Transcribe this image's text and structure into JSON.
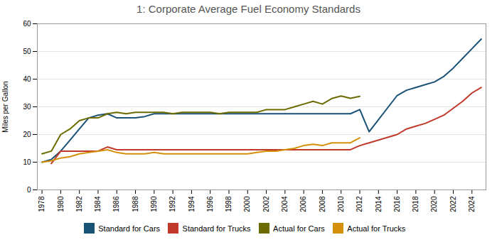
{
  "chart_data": {
    "type": "line",
    "title": "1: Corporate Average Fuel Economy Standards",
    "ylabel": "Miles per Gallon",
    "xlim": [
      1977.5,
      2025.5
    ],
    "xticks": [
      1978,
      1980,
      1982,
      1984,
      1986,
      1988,
      1990,
      1992,
      1994,
      1996,
      1998,
      2000,
      2002,
      2004,
      2006,
      2008,
      2010,
      2012,
      2014,
      2016,
      2018,
      2020,
      2022,
      2024
    ],
    "ylim": [
      0,
      60
    ],
    "yticks": [
      0,
      10,
      20,
      30,
      40,
      50,
      60
    ],
    "grid": "y",
    "legend": "bottom",
    "series": [
      {
        "name": "Standard for Cars",
        "color": "#1a5276",
        "x": [
          1978,
          1979,
          1980,
          1981,
          1982,
          1983,
          1984,
          1985,
          1986,
          1987,
          1988,
          1989,
          1990,
          1991,
          1992,
          1993,
          1994,
          1995,
          1996,
          1997,
          1998,
          1999,
          2000,
          2001,
          2002,
          2003,
          2004,
          2005,
          2006,
          2007,
          2008,
          2009,
          2010,
          2011,
          2012,
          2013,
          2016,
          2017,
          2018,
          2019,
          2020,
          2021,
          2022,
          2023,
          2024,
          2025
        ],
        "values": [
          10,
          11,
          14,
          18,
          22,
          26,
          27,
          27.5,
          26,
          26,
          26,
          26.5,
          27.5,
          27.5,
          27.5,
          27.5,
          27.5,
          27.5,
          27.5,
          27.5,
          27.5,
          27.5,
          27.5,
          27.5,
          27.5,
          27.5,
          27.5,
          27.5,
          27.5,
          27.5,
          27.5,
          27.5,
          27.5,
          27.5,
          29,
          21,
          34.1,
          36,
          37,
          38,
          39,
          41,
          44,
          47.5,
          51,
          54.5
        ]
      },
      {
        "name": "Standard for Trucks",
        "color": "#c0392b",
        "x": [
          1979,
          1980,
          1981,
          1982,
          1983,
          1984,
          1985,
          1986,
          1987,
          1988,
          1989,
          1990,
          1991,
          1992,
          1993,
          1994,
          1995,
          1996,
          1997,
          1998,
          1999,
          2000,
          2001,
          2002,
          2003,
          2004,
          2005,
          2006,
          2007,
          2008,
          2009,
          2010,
          2011,
          2012,
          2013,
          2016,
          2017,
          2018,
          2019,
          2020,
          2021,
          2022,
          2023,
          2024,
          2025
        ],
        "values": [
          9.5,
          14,
          14,
          14,
          14,
          14,
          15.5,
          14.5,
          14.5,
          14.5,
          14.5,
          14.5,
          14.5,
          14.5,
          14.5,
          14.5,
          14.5,
          14.5,
          14.5,
          14.5,
          14.5,
          14.5,
          14.5,
          14.5,
          14.5,
          14.5,
          14.5,
          14.5,
          14.5,
          14.5,
          14.5,
          14.5,
          14.5,
          16,
          17,
          20,
          22,
          23,
          24,
          25.5,
          27,
          29.5,
          32,
          35,
          37
        ]
      },
      {
        "name": "Actual for Cars",
        "color": "#6b6b00",
        "x": [
          1978,
          1979,
          1980,
          1981,
          1982,
          1983,
          1984,
          1985,
          1986,
          1987,
          1988,
          1989,
          1990,
          1991,
          1992,
          1993,
          1994,
          1995,
          1996,
          1997,
          1998,
          1999,
          2000,
          2001,
          2002,
          2003,
          2004,
          2005,
          2006,
          2007,
          2008,
          2009,
          2010,
          2011,
          2012
        ],
        "values": [
          13,
          14,
          20,
          22,
          25,
          26,
          26,
          27.5,
          28,
          27.5,
          28,
          28,
          28,
          28,
          27.5,
          28,
          28,
          28,
          28,
          27.5,
          28,
          28,
          28,
          28,
          29,
          29,
          29,
          30,
          31,
          32,
          31,
          33,
          33.9,
          33.1,
          33.8
        ]
      },
      {
        "name": "Actual for Trucks",
        "color": "#d4900a",
        "x": [
          1978,
          1979,
          1980,
          1981,
          1982,
          1983,
          1984,
          1985,
          1986,
          1987,
          1988,
          1989,
          1990,
          1991,
          1992,
          1993,
          1994,
          1995,
          1996,
          1997,
          1998,
          1999,
          2000,
          2001,
          2002,
          2003,
          2004,
          2005,
          2006,
          2007,
          2008,
          2009,
          2010,
          2011,
          2012
        ],
        "values": [
          10,
          10.5,
          11.5,
          12,
          13,
          13.5,
          14,
          14.5,
          13.5,
          13,
          13,
          13,
          13.5,
          13,
          13,
          13,
          13,
          13,
          13,
          13,
          13,
          13,
          13,
          13.5,
          14,
          14,
          14.5,
          15,
          16,
          16.5,
          16,
          17,
          17,
          17,
          18.8
        ]
      }
    ]
  }
}
